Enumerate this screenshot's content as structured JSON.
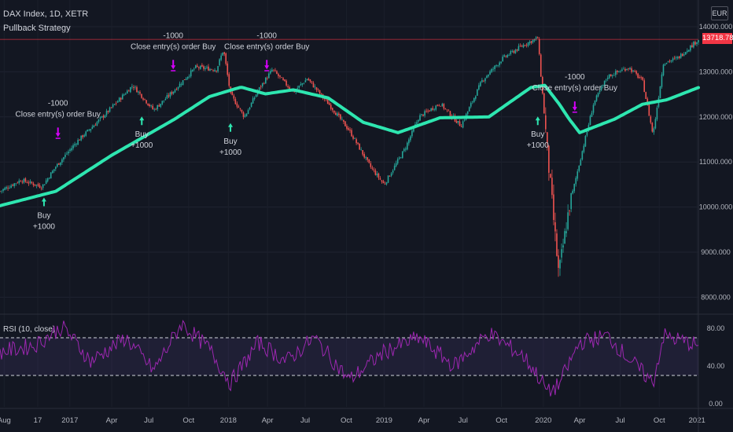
{
  "header": {
    "symbol": "DAX Index, 1D, XETR",
    "strategy": "Pullback Strategy",
    "currency": "EUR",
    "last_price": "13718.780"
  },
  "chart_data": [
    {
      "type": "line",
      "title": "DAX Index, 1D, XETR",
      "x_ticks": [
        "Aug",
        "17",
        "2017",
        "Apr",
        "Jul",
        "Oct",
        "2018",
        "Apr",
        "Jul",
        "Oct",
        "2019",
        "Apr",
        "Jul",
        "Oct",
        "2020",
        "Apr",
        "Jul",
        "Oct",
        "2021"
      ],
      "y_ticks": [
        "14000.000",
        "13000.000",
        "12000.000",
        "11000.000",
        "10000.000",
        "9000.000",
        "8000.000"
      ],
      "ylim": [
        7800,
        14300
      ],
      "price_path": [
        {
          "t": 0,
          "v": 10350
        },
        {
          "t": 0.03,
          "v": 10600
        },
        {
          "t": 0.06,
          "v": 10450
        },
        {
          "t": 0.08,
          "v": 10900
        },
        {
          "t": 0.11,
          "v": 11450
        },
        {
          "t": 0.15,
          "v": 12050
        },
        {
          "t": 0.19,
          "v": 12700
        },
        {
          "t": 0.22,
          "v": 12150
        },
        {
          "t": 0.25,
          "v": 12600
        },
        {
          "t": 0.28,
          "v": 13100
        },
        {
          "t": 0.31,
          "v": 13050
        },
        {
          "t": 0.32,
          "v": 13500
        },
        {
          "t": 0.33,
          "v": 12500
        },
        {
          "t": 0.35,
          "v": 12000
        },
        {
          "t": 0.37,
          "v": 12600
        },
        {
          "t": 0.39,
          "v": 13050
        },
        {
          "t": 0.42,
          "v": 12550
        },
        {
          "t": 0.44,
          "v": 12850
        },
        {
          "t": 0.47,
          "v": 12300
        },
        {
          "t": 0.5,
          "v": 11700
        },
        {
          "t": 0.53,
          "v": 10900
        },
        {
          "t": 0.55,
          "v": 10500
        },
        {
          "t": 0.58,
          "v": 11300
        },
        {
          "t": 0.6,
          "v": 12000
        },
        {
          "t": 0.63,
          "v": 12300
        },
        {
          "t": 0.66,
          "v": 11800
        },
        {
          "t": 0.69,
          "v": 12800
        },
        {
          "t": 0.72,
          "v": 13300
        },
        {
          "t": 0.75,
          "v": 13600
        },
        {
          "t": 0.77,
          "v": 13750
        },
        {
          "t": 0.785,
          "v": 11000
        },
        {
          "t": 0.8,
          "v": 8500
        },
        {
          "t": 0.815,
          "v": 10000
        },
        {
          "t": 0.83,
          "v": 11000
        },
        {
          "t": 0.85,
          "v": 12300
        },
        {
          "t": 0.87,
          "v": 12900
        },
        {
          "t": 0.9,
          "v": 13100
        },
        {
          "t": 0.92,
          "v": 12800
        },
        {
          "t": 0.935,
          "v": 11600
        },
        {
          "t": 0.95,
          "v": 13200
        },
        {
          "t": 0.97,
          "v": 13300
        },
        {
          "t": 1,
          "v": 13718
        }
      ],
      "series": [
        {
          "name": "",
          "color": "#2ee6b0",
          "points": [
            {
              "t": 0,
              "v": 10030
            },
            {
              "t": 0.08,
              "v": 10350
            },
            {
              "t": 0.16,
              "v": 11150
            },
            {
              "t": 0.25,
              "v": 11950
            },
            {
              "t": 0.3,
              "v": 12450
            },
            {
              "t": 0.345,
              "v": 12660
            },
            {
              "t": 0.38,
              "v": 12510
            },
            {
              "t": 0.42,
              "v": 12600
            },
            {
              "t": 0.47,
              "v": 12420
            },
            {
              "t": 0.52,
              "v": 11880
            },
            {
              "t": 0.57,
              "v": 11650
            },
            {
              "t": 0.63,
              "v": 11980
            },
            {
              "t": 0.7,
              "v": 12000
            },
            {
              "t": 0.76,
              "v": 12650
            },
            {
              "t": 0.78,
              "v": 12700
            },
            {
              "t": 0.8,
              "v": 12300
            },
            {
              "t": 0.815,
              "v": 11950
            },
            {
              "t": 0.83,
              "v": 11650
            },
            {
              "t": 0.88,
              "v": 11950
            },
            {
              "t": 0.92,
              "v": 12280
            },
            {
              "t": 0.955,
              "v": 12380
            },
            {
              "t": 1,
              "v": 12650
            }
          ]
        }
      ],
      "last_value": 13718.78,
      "annotations": [
        {
          "kind": "entry",
          "t": 0.063,
          "v": 10350,
          "lines": [
            "Buy",
            "+1000"
          ]
        },
        {
          "kind": "exit",
          "t": 0.083,
          "v": 11450,
          "lines": [
            "-1000",
            "Close entry(s) order Buy"
          ]
        },
        {
          "kind": "entry",
          "t": 0.203,
          "v": 12150,
          "lines": [
            "Buy",
            "+1000"
          ]
        },
        {
          "kind": "exit",
          "t": 0.248,
          "v": 12950,
          "lines": [
            "-1000",
            "Close entry(s) order Buy"
          ]
        },
        {
          "kind": "entry",
          "t": 0.33,
          "v": 12000,
          "lines": [
            "Buy",
            "+1000"
          ]
        },
        {
          "kind": "exit",
          "t": 0.382,
          "v": 12950,
          "lines": [
            "-1000",
            "Close entry(s) order Buy"
          ]
        },
        {
          "kind": "entry",
          "t": 0.77,
          "v": 12150,
          "lines": [
            "Buy",
            "+1000"
          ]
        },
        {
          "kind": "exit",
          "t": 0.823,
          "v": 12030,
          "lines": [
            "-1000",
            "Close entry(s) order Buy"
          ]
        }
      ]
    },
    {
      "type": "line",
      "title": "RSI (10, close)",
      "y_ticks": [
        "80.00",
        "40.00",
        "0.00"
      ],
      "ylim": [
        0,
        90
      ],
      "bands": [
        30,
        70
      ],
      "series": [
        {
          "name": "RSI (10, close)",
          "color": "#9c27b0",
          "points": [
            {
              "t": 0,
              "v": 55
            },
            {
              "t": 0.05,
              "v": 62
            },
            {
              "t": 0.09,
              "v": 82
            },
            {
              "t": 0.13,
              "v": 45
            },
            {
              "t": 0.18,
              "v": 70
            },
            {
              "t": 0.22,
              "v": 35
            },
            {
              "t": 0.26,
              "v": 85
            },
            {
              "t": 0.3,
              "v": 58
            },
            {
              "t": 0.33,
              "v": 22
            },
            {
              "t": 0.37,
              "v": 65
            },
            {
              "t": 0.41,
              "v": 45
            },
            {
              "t": 0.45,
              "v": 70
            },
            {
              "t": 0.5,
              "v": 25
            },
            {
              "t": 0.55,
              "v": 55
            },
            {
              "t": 0.6,
              "v": 70
            },
            {
              "t": 0.65,
              "v": 40
            },
            {
              "t": 0.7,
              "v": 75
            },
            {
              "t": 0.75,
              "v": 50
            },
            {
              "t": 0.77,
              "v": 30
            },
            {
              "t": 0.785,
              "v": 12
            },
            {
              "t": 0.8,
              "v": 20
            },
            {
              "t": 0.83,
              "v": 65
            },
            {
              "t": 0.87,
              "v": 72
            },
            {
              "t": 0.9,
              "v": 48
            },
            {
              "t": 0.935,
              "v": 22
            },
            {
              "t": 0.95,
              "v": 72
            },
            {
              "t": 1,
              "v": 62
            }
          ]
        }
      ]
    }
  ]
}
